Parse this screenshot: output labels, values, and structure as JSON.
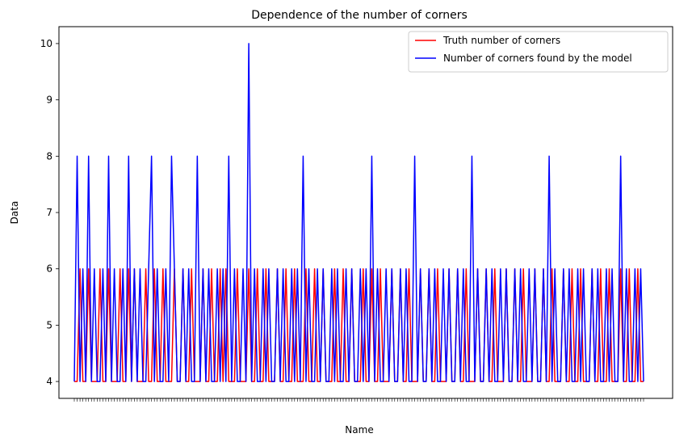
{
  "chart_data": {
    "type": "line",
    "title": "Dependence of the number of corners",
    "xlabel": "Name",
    "ylabel": "Data",
    "ylim": [
      3.7,
      10.3
    ],
    "yticks": [
      4,
      5,
      6,
      7,
      8,
      9,
      10
    ],
    "grid": false,
    "legend_position": "top-right",
    "x_category_count": 200,
    "series": [
      {
        "name": "Truth number of corners",
        "color": "#ff0000",
        "values": [
          4,
          4,
          6,
          4,
          4,
          6,
          4,
          4,
          4,
          6,
          4,
          4,
          6,
          4,
          4,
          4,
          6,
          4,
          4,
          6,
          4,
          6,
          4,
          4,
          4,
          6,
          4,
          4,
          6,
          4,
          4,
          6,
          4,
          4,
          4,
          6,
          4,
          4,
          6,
          4,
          4,
          6,
          4,
          4,
          4,
          6,
          4,
          4,
          6,
          4,
          4,
          6,
          4,
          6,
          4,
          4,
          4,
          6,
          4,
          4,
          4,
          6,
          4,
          4,
          6,
          4,
          4,
          6,
          4,
          4,
          4,
          6,
          4,
          4,
          6,
          4,
          4,
          6,
          4,
          4,
          4,
          6,
          4,
          4,
          6,
          4,
          4,
          6,
          4,
          4,
          4,
          6,
          4,
          4,
          6,
          4,
          4,
          6,
          4,
          4,
          4,
          6,
          4,
          4,
          6,
          4,
          4,
          6,
          4,
          4,
          4,
          6,
          4,
          4,
          6,
          4,
          4,
          6,
          4,
          4,
          4,
          6,
          4,
          4,
          6,
          4,
          4,
          6,
          4,
          4,
          4,
          6,
          4,
          4,
          6,
          4,
          4,
          6,
          4,
          4,
          4,
          6,
          4,
          4,
          6,
          4,
          4,
          6,
          4,
          4,
          4,
          6,
          4,
          4,
          6,
          4,
          4,
          6,
          4,
          4,
          4,
          6,
          4,
          4,
          6,
          4,
          4,
          6,
          4,
          4,
          4,
          6,
          4,
          4,
          6,
          4,
          4,
          6,
          4,
          4,
          4,
          6,
          4,
          4,
          6,
          4,
          4,
          6,
          4,
          4,
          4,
          6,
          4,
          4,
          6,
          4,
          4,
          6,
          4,
          4,
          4,
          6,
          4,
          4
        ]
      },
      {
        "name": "Number of corners found by the model",
        "color": "#0000ff",
        "values": [
          4,
          8,
          4,
          6,
          4,
          8,
          4,
          6,
          4,
          4,
          6,
          4,
          8,
          4,
          6,
          4,
          4,
          6,
          4,
          8,
          4,
          6,
          4,
          6,
          4,
          4,
          6,
          8,
          4,
          6,
          4,
          4,
          6,
          4,
          8,
          6,
          4,
          4,
          6,
          4,
          6,
          4,
          4,
          8,
          4,
          6,
          4,
          6,
          4,
          4,
          6,
          4,
          6,
          4,
          8,
          4,
          6,
          4,
          4,
          6,
          4,
          10,
          4,
          6,
          4,
          4,
          6,
          4,
          6,
          4,
          4,
          6,
          4,
          6,
          4,
          4,
          6,
          4,
          6,
          4,
          8,
          4,
          6,
          4,
          4,
          6,
          4,
          6,
          4,
          4,
          6,
          4,
          6,
          4,
          4,
          6,
          4,
          6,
          4,
          4,
          6,
          4,
          6,
          4,
          8,
          4,
          6,
          4,
          4,
          6,
          4,
          6,
          4,
          4,
          6,
          4,
          6,
          4,
          4,
          8,
          4,
          6,
          4,
          4,
          6,
          4,
          6,
          4,
          4,
          6,
          4,
          6,
          4,
          4,
          6,
          4,
          6,
          4,
          4,
          8,
          4,
          6,
          4,
          4,
          6,
          4,
          6,
          4,
          4,
          6,
          4,
          6,
          4,
          4,
          6,
          4,
          6,
          4,
          4,
          6,
          4,
          6,
          4,
          4,
          6,
          4,
          8,
          4,
          6,
          4,
          4,
          6,
          4,
          6,
          4,
          4,
          6,
          4,
          6,
          4,
          4,
          6,
          4,
          6,
          4,
          4,
          6,
          4,
          6,
          4,
          4,
          8,
          4,
          6,
          4,
          4,
          6,
          4,
          6,
          4
        ]
      }
    ]
  }
}
